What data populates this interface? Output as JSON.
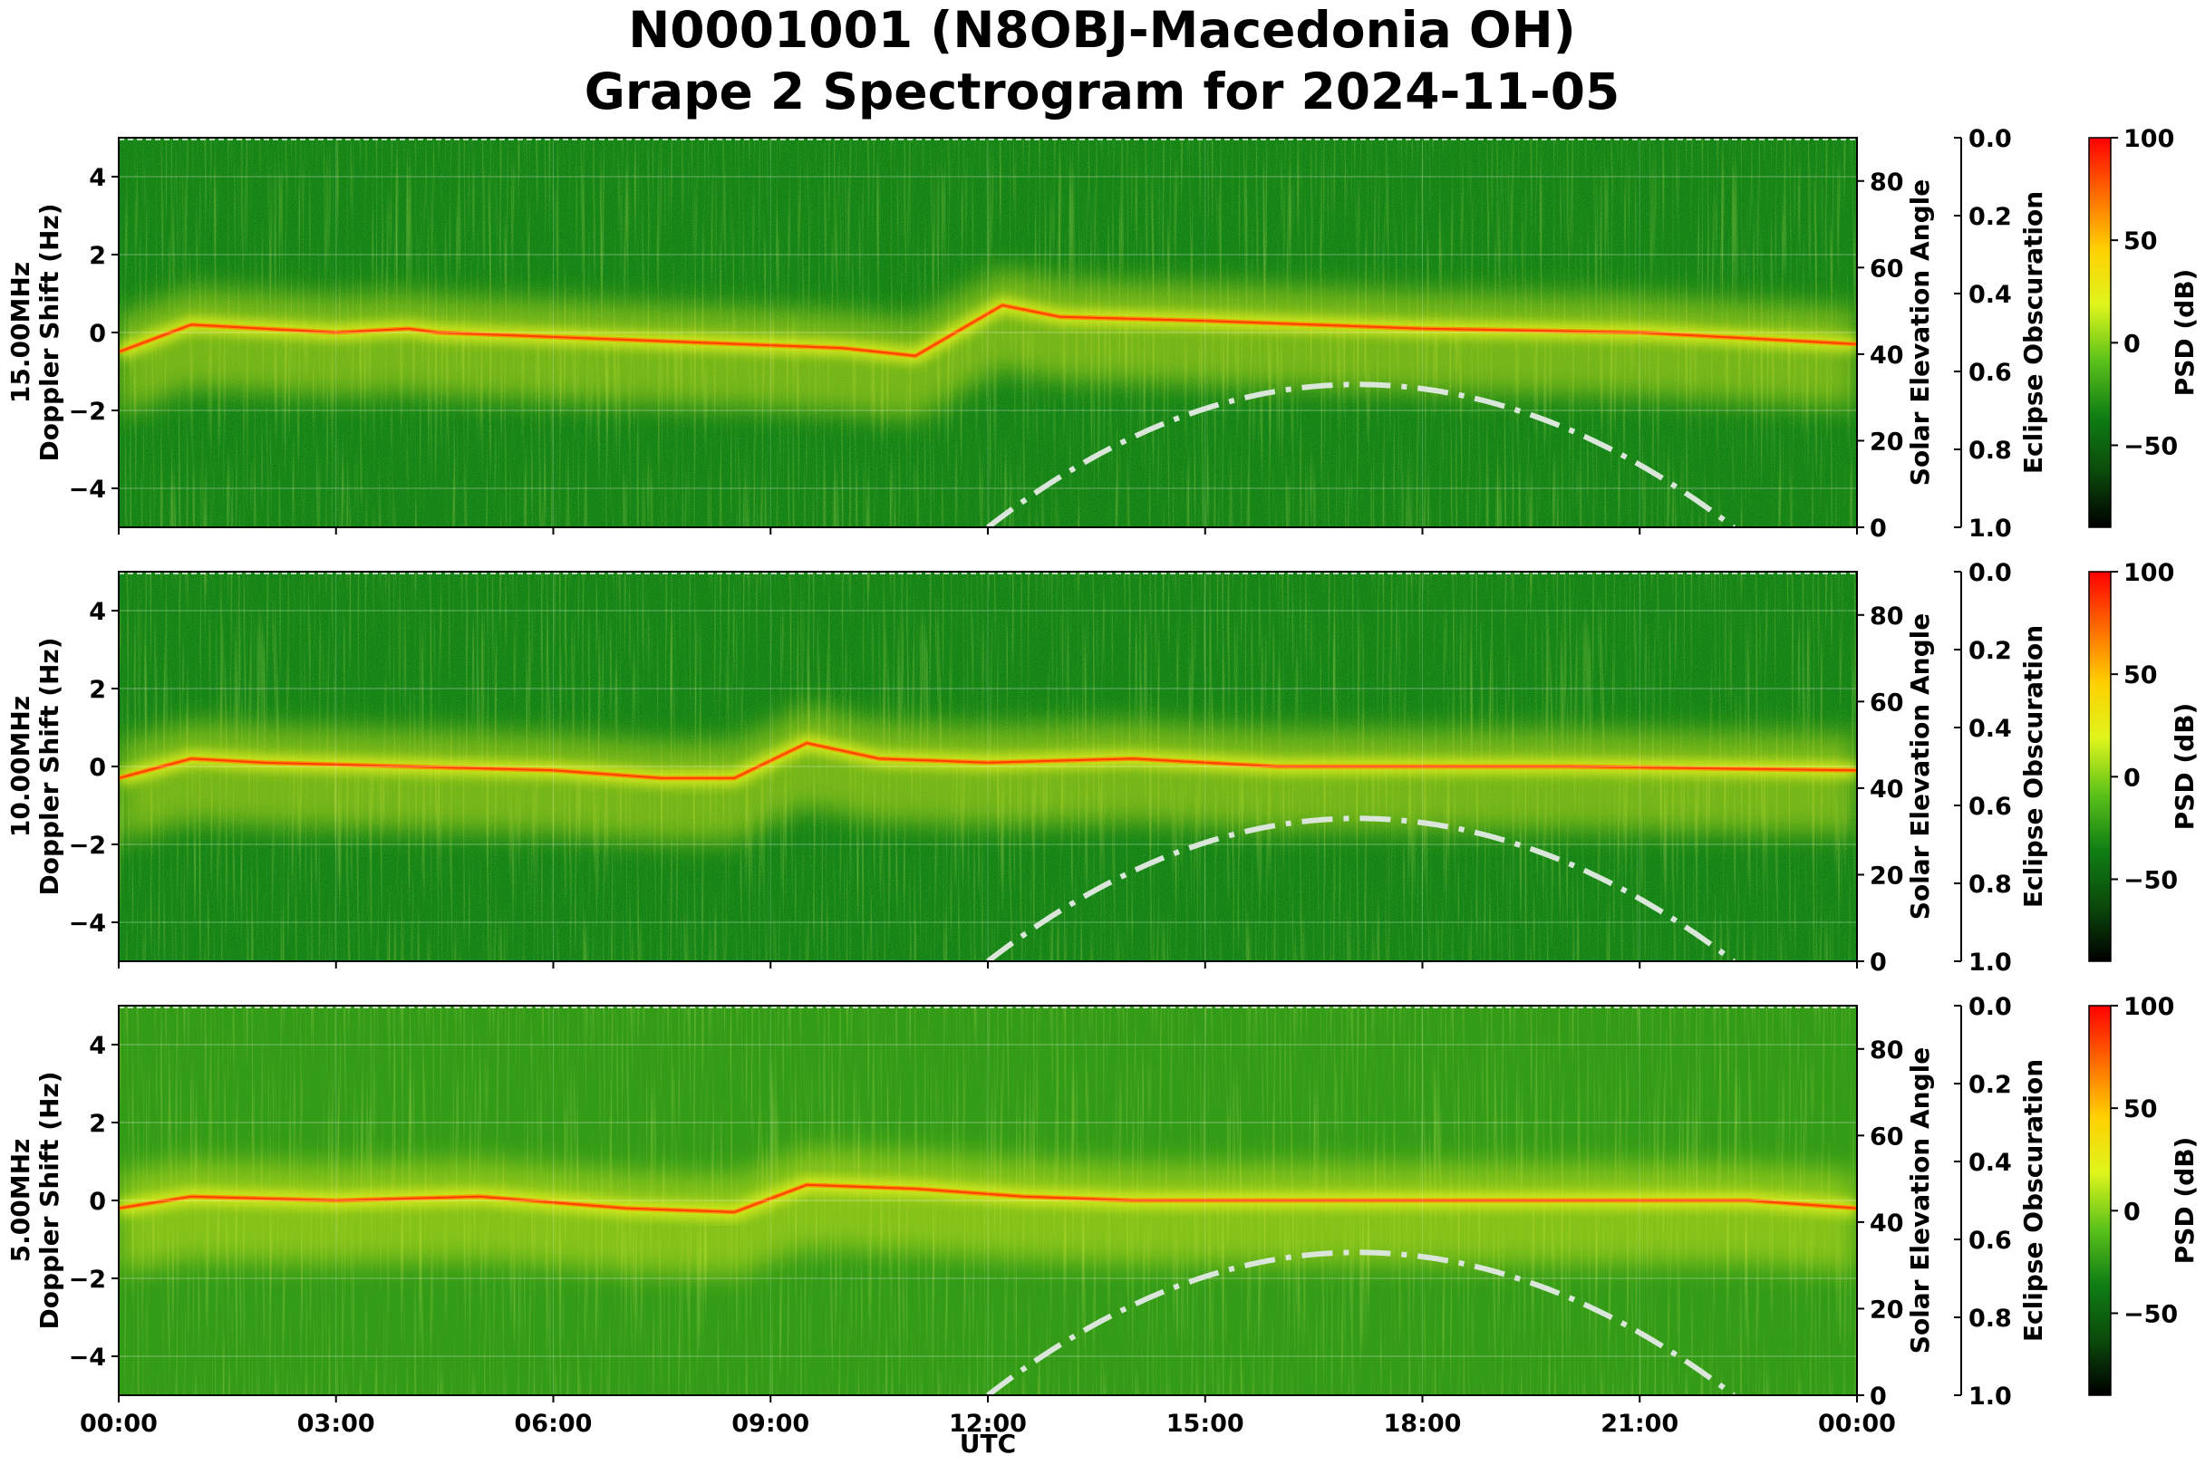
{
  "figure": {
    "title_line1": "N0001001 (N8OBJ-Macedonia OH)",
    "title_line2": "Grape 2 Spectrogram for 2024-11-05",
    "xlabel": "UTC",
    "xticks": [
      "00:00",
      "03:00",
      "06:00",
      "09:00",
      "12:00",
      "15:00",
      "18:00",
      "21:00",
      "00:00"
    ]
  },
  "colors": {
    "background_green": "#0a7d12",
    "mid_green": "#2f9a12",
    "yellow": "#e8f21a",
    "orange": "#ff8a00",
    "red": "#ff2a00",
    "solar_curve": "#d9e6d9",
    "colormap": [
      "#000000",
      "#0b4a0b",
      "#0f7f14",
      "#5cc21a",
      "#dff51c",
      "#ffd000",
      "#ff6a00",
      "#ff0000"
    ]
  },
  "chart_data": [
    {
      "type": "heatmap",
      "frequency_label": "15.00MHz",
      "ylabel": "Doppler Shift (Hz)",
      "ylim": [
        -5,
        5
      ],
      "yticks": [
        "4",
        "2",
        "0",
        "−2",
        "−4"
      ],
      "xlim_utc_hours": [
        0,
        24
      ],
      "solar": {
        "label": "Solar Elevation Angle",
        "ylim": [
          0,
          90
        ],
        "ticks": [
          "80",
          "60",
          "40",
          "20",
          "0"
        ],
        "rise_utc": 12.0,
        "peak_utc": 17.1,
        "peak_deg": 33,
        "set_utc": 22.3
      },
      "eclipse": {
        "label": "Eclipse Obscuration",
        "ylim": [
          1.0,
          0.0
        ],
        "ticks": [
          "0.0",
          "0.2",
          "0.4",
          "0.6",
          "0.8",
          "1.0"
        ]
      },
      "colorbar": {
        "label": "PSD (dB)",
        "range": [
          -90,
          100
        ],
        "ticks": [
          "100",
          "50",
          "0",
          "−50"
        ]
      },
      "carrier_trace": [
        [
          0,
          -0.5
        ],
        [
          1,
          0.2
        ],
        [
          2,
          0.1
        ],
        [
          3,
          0.0
        ],
        [
          4,
          0.1
        ],
        [
          4.4,
          0.0
        ],
        [
          10,
          -0.4
        ],
        [
          11,
          -0.6
        ],
        [
          12.2,
          0.7
        ],
        [
          13,
          0.4
        ],
        [
          15,
          0.3
        ],
        [
          18,
          0.1
        ],
        [
          21,
          0.0
        ],
        [
          24,
          -0.3
        ]
      ]
    },
    {
      "type": "heatmap",
      "frequency_label": "10.00MHz",
      "ylabel": "Doppler Shift (Hz)",
      "ylim": [
        -5,
        5
      ],
      "yticks": [
        "4",
        "2",
        "0",
        "−2",
        "−4"
      ],
      "xlim_utc_hours": [
        0,
        24
      ],
      "solar": {
        "label": "Solar Elevation Angle",
        "ylim": [
          0,
          90
        ],
        "ticks": [
          "80",
          "60",
          "40",
          "20",
          "0"
        ],
        "rise_utc": 12.0,
        "peak_utc": 17.1,
        "peak_deg": 33,
        "set_utc": 22.3
      },
      "eclipse": {
        "label": "Eclipse Obscuration",
        "ylim": [
          1.0,
          0.0
        ],
        "ticks": [
          "0.0",
          "0.2",
          "0.4",
          "0.6",
          "0.8",
          "1.0"
        ]
      },
      "colorbar": {
        "label": "PSD (dB)",
        "range": [
          -90,
          100
        ],
        "ticks": [
          "100",
          "50",
          "0",
          "−50"
        ]
      },
      "carrier_trace": [
        [
          0,
          -0.3
        ],
        [
          1,
          0.2
        ],
        [
          2,
          0.1
        ],
        [
          4,
          0.0
        ],
        [
          6,
          -0.1
        ],
        [
          7.5,
          -0.3
        ],
        [
          8.5,
          -0.3
        ],
        [
          9.5,
          0.6
        ],
        [
          10.5,
          0.2
        ],
        [
          12,
          0.1
        ],
        [
          14,
          0.2
        ],
        [
          16,
          0.0
        ],
        [
          20,
          0.0
        ],
        [
          24,
          -0.1
        ]
      ]
    },
    {
      "type": "heatmap",
      "frequency_label": "5.00MHz",
      "ylabel": "Doppler Shift (Hz)",
      "ylim": [
        -5,
        5
      ],
      "yticks": [
        "4",
        "2",
        "0",
        "−2",
        "−4"
      ],
      "xlim_utc_hours": [
        0,
        24
      ],
      "solar": {
        "label": "Solar Elevation Angle",
        "ylim": [
          0,
          90
        ],
        "ticks": [
          "80",
          "60",
          "40",
          "20",
          "0"
        ],
        "rise_utc": 12.0,
        "peak_utc": 17.1,
        "peak_deg": 33,
        "set_utc": 22.3
      },
      "eclipse": {
        "label": "Eclipse Obscuration",
        "ylim": [
          1.0,
          0.0
        ],
        "ticks": [
          "0.0",
          "0.2",
          "0.4",
          "0.6",
          "0.8",
          "1.0"
        ]
      },
      "colorbar": {
        "label": "PSD (dB)",
        "range": [
          -90,
          100
        ],
        "ticks": [
          "100",
          "50",
          "0",
          "−50"
        ]
      },
      "carrier_trace": [
        [
          0,
          -0.2
        ],
        [
          1,
          0.1
        ],
        [
          3,
          0.0
        ],
        [
          5,
          0.1
        ],
        [
          7,
          -0.2
        ],
        [
          8.5,
          -0.3
        ],
        [
          9.5,
          0.4
        ],
        [
          11,
          0.3
        ],
        [
          12.5,
          0.1
        ],
        [
          14,
          0.0
        ],
        [
          22.5,
          0.0
        ],
        [
          24,
          -0.2
        ]
      ]
    }
  ]
}
